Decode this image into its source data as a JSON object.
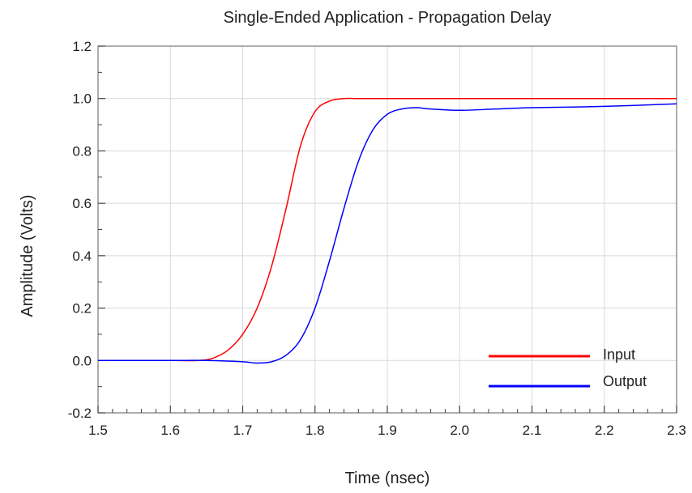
{
  "chart_data": {
    "type": "line",
    "title": "Single-Ended Application - Propagation Delay",
    "xlabel": "Time (nsec)",
    "ylabel": "Amplitude (Volts)",
    "xlim": [
      1.5,
      2.3
    ],
    "ylim": [
      -0.2,
      1.2
    ],
    "xticks": [
      1.5,
      1.6,
      1.7,
      1.8,
      1.9,
      2.0,
      2.1,
      2.2,
      2.3
    ],
    "yticks": [
      -0.2,
      0.0,
      0.2,
      0.4,
      0.6,
      0.8,
      1.0,
      1.2
    ],
    "xtick_labels": [
      "1.5",
      "1.6",
      "1.7",
      "1.8",
      "1.9",
      "2.0",
      "2.1",
      "2.2",
      "2.3"
    ],
    "ytick_labels": [
      "-0.2",
      "0.0",
      "0.2",
      "0.4",
      "0.6",
      "0.8",
      "1.0",
      "1.2"
    ],
    "grid": true,
    "legend_position": "bottom-right",
    "series": [
      {
        "name": "Input",
        "color": "#ff0000",
        "x": [
          1.5,
          1.6,
          1.64,
          1.66,
          1.68,
          1.7,
          1.72,
          1.74,
          1.76,
          1.78,
          1.8,
          1.82,
          1.84,
          1.86,
          1.9,
          2.0,
          2.1,
          2.2,
          2.3
        ],
        "y": [
          0.0,
          0.0,
          0.0,
          0.01,
          0.04,
          0.1,
          0.2,
          0.36,
          0.58,
          0.82,
          0.95,
          0.99,
          1.0,
          1.0,
          1.0,
          1.0,
          1.0,
          1.0,
          1.0
        ]
      },
      {
        "name": "Output",
        "color": "#0000ff",
        "x": [
          1.5,
          1.6,
          1.65,
          1.7,
          1.72,
          1.74,
          1.76,
          1.78,
          1.8,
          1.82,
          1.84,
          1.86,
          1.88,
          1.9,
          1.92,
          1.94,
          1.96,
          2.0,
          2.05,
          2.1,
          2.2,
          2.3
        ],
        "y": [
          0.0,
          0.0,
          0.0,
          -0.005,
          -0.01,
          -0.005,
          0.02,
          0.08,
          0.2,
          0.38,
          0.58,
          0.76,
          0.88,
          0.94,
          0.96,
          0.965,
          0.96,
          0.955,
          0.96,
          0.965,
          0.97,
          0.98
        ]
      }
    ]
  }
}
